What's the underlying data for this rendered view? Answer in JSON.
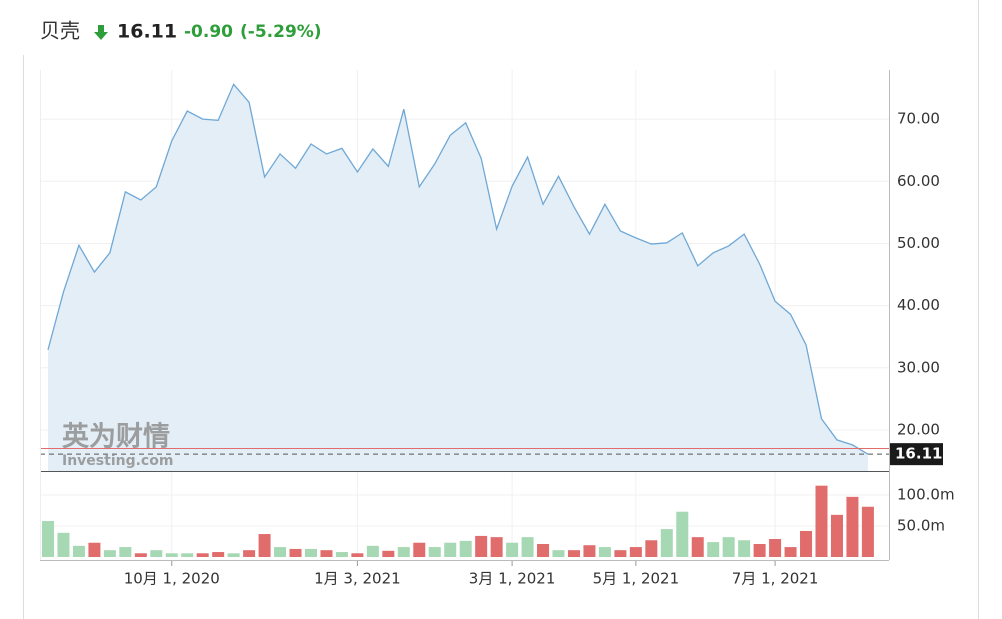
{
  "header": {
    "name": "贝壳",
    "price": "16.11",
    "change": "-0.90",
    "change_pct": "(-5.29%)"
  },
  "watermark": {
    "brand": "英为财情",
    "site": "Investing.com"
  },
  "chart_data": [
    {
      "type": "area",
      "color": "#6fa8d6",
      "fill": "#e4eef6",
      "values": [
        32.9,
        42.2,
        49.7,
        45.4,
        48.5,
        58.3,
        57.0,
        59.1,
        66.5,
        71.3,
        70.0,
        69.8,
        75.6,
        72.7,
        60.7,
        64.4,
        62.1,
        66.0,
        64.4,
        65.3,
        61.5,
        65.2,
        62.4,
        71.6,
        59.1,
        62.8,
        67.4,
        69.4,
        63.7,
        52.3,
        59.2,
        63.9,
        56.3,
        60.8,
        55.9,
        51.5,
        56.3,
        52.0,
        50.9,
        49.9,
        50.1,
        51.7,
        46.4,
        48.5,
        49.6,
        51.5,
        46.7,
        40.7,
        38.6,
        33.7,
        21.8,
        18.4,
        17.6,
        16.11
      ],
      "ylim": [
        13.4,
        77.9
      ],
      "yticks": [
        {
          "value": 20,
          "label": "20.00"
        },
        {
          "value": 30,
          "label": "30.00"
        },
        {
          "value": 40,
          "label": "40.00"
        },
        {
          "value": 50,
          "label": "50.00"
        },
        {
          "value": 60,
          "label": "60.00"
        },
        {
          "value": 70,
          "label": "70.00"
        }
      ],
      "reference_line": 17.01,
      "reference_color": "#e06c6c",
      "grid": true
    },
    {
      "type": "bar",
      "up_color": "#a6d8b3",
      "down_color": "#e06c6c",
      "categories": [
        null,
        null,
        null,
        null,
        null,
        null,
        null,
        null,
        "10月 1, 2020",
        null,
        null,
        null,
        null,
        null,
        null,
        null,
        null,
        null,
        null,
        null,
        "1月 3, 2021",
        null,
        null,
        null,
        null,
        null,
        null,
        null,
        null,
        null,
        "3月 1, 2021",
        null,
        null,
        null,
        null,
        null,
        null,
        null,
        "5月 1, 2021",
        null,
        null,
        null,
        null,
        null,
        null,
        null,
        null,
        "7月 1, 2021",
        null,
        null,
        null,
        null,
        null,
        null
      ],
      "values": [
        58,
        39,
        18,
        23,
        11,
        16,
        6,
        11,
        6,
        6,
        6,
        8,
        6,
        11,
        37,
        16,
        13,
        13,
        11,
        8,
        6,
        18,
        10,
        16,
        23,
        16,
        23,
        26,
        34,
        32,
        23,
        32,
        21,
        11,
        11,
        19,
        16,
        11,
        16,
        27,
        45,
        73,
        32,
        24,
        32,
        27,
        21,
        29,
        16,
        42,
        115,
        68,
        97,
        81
      ],
      "ylim": [
        0,
        129
      ],
      "yticks": [
        {
          "value": 50,
          "label": "50.0m"
        },
        {
          "value": 100,
          "label": "100.0m"
        }
      ]
    }
  ]
}
